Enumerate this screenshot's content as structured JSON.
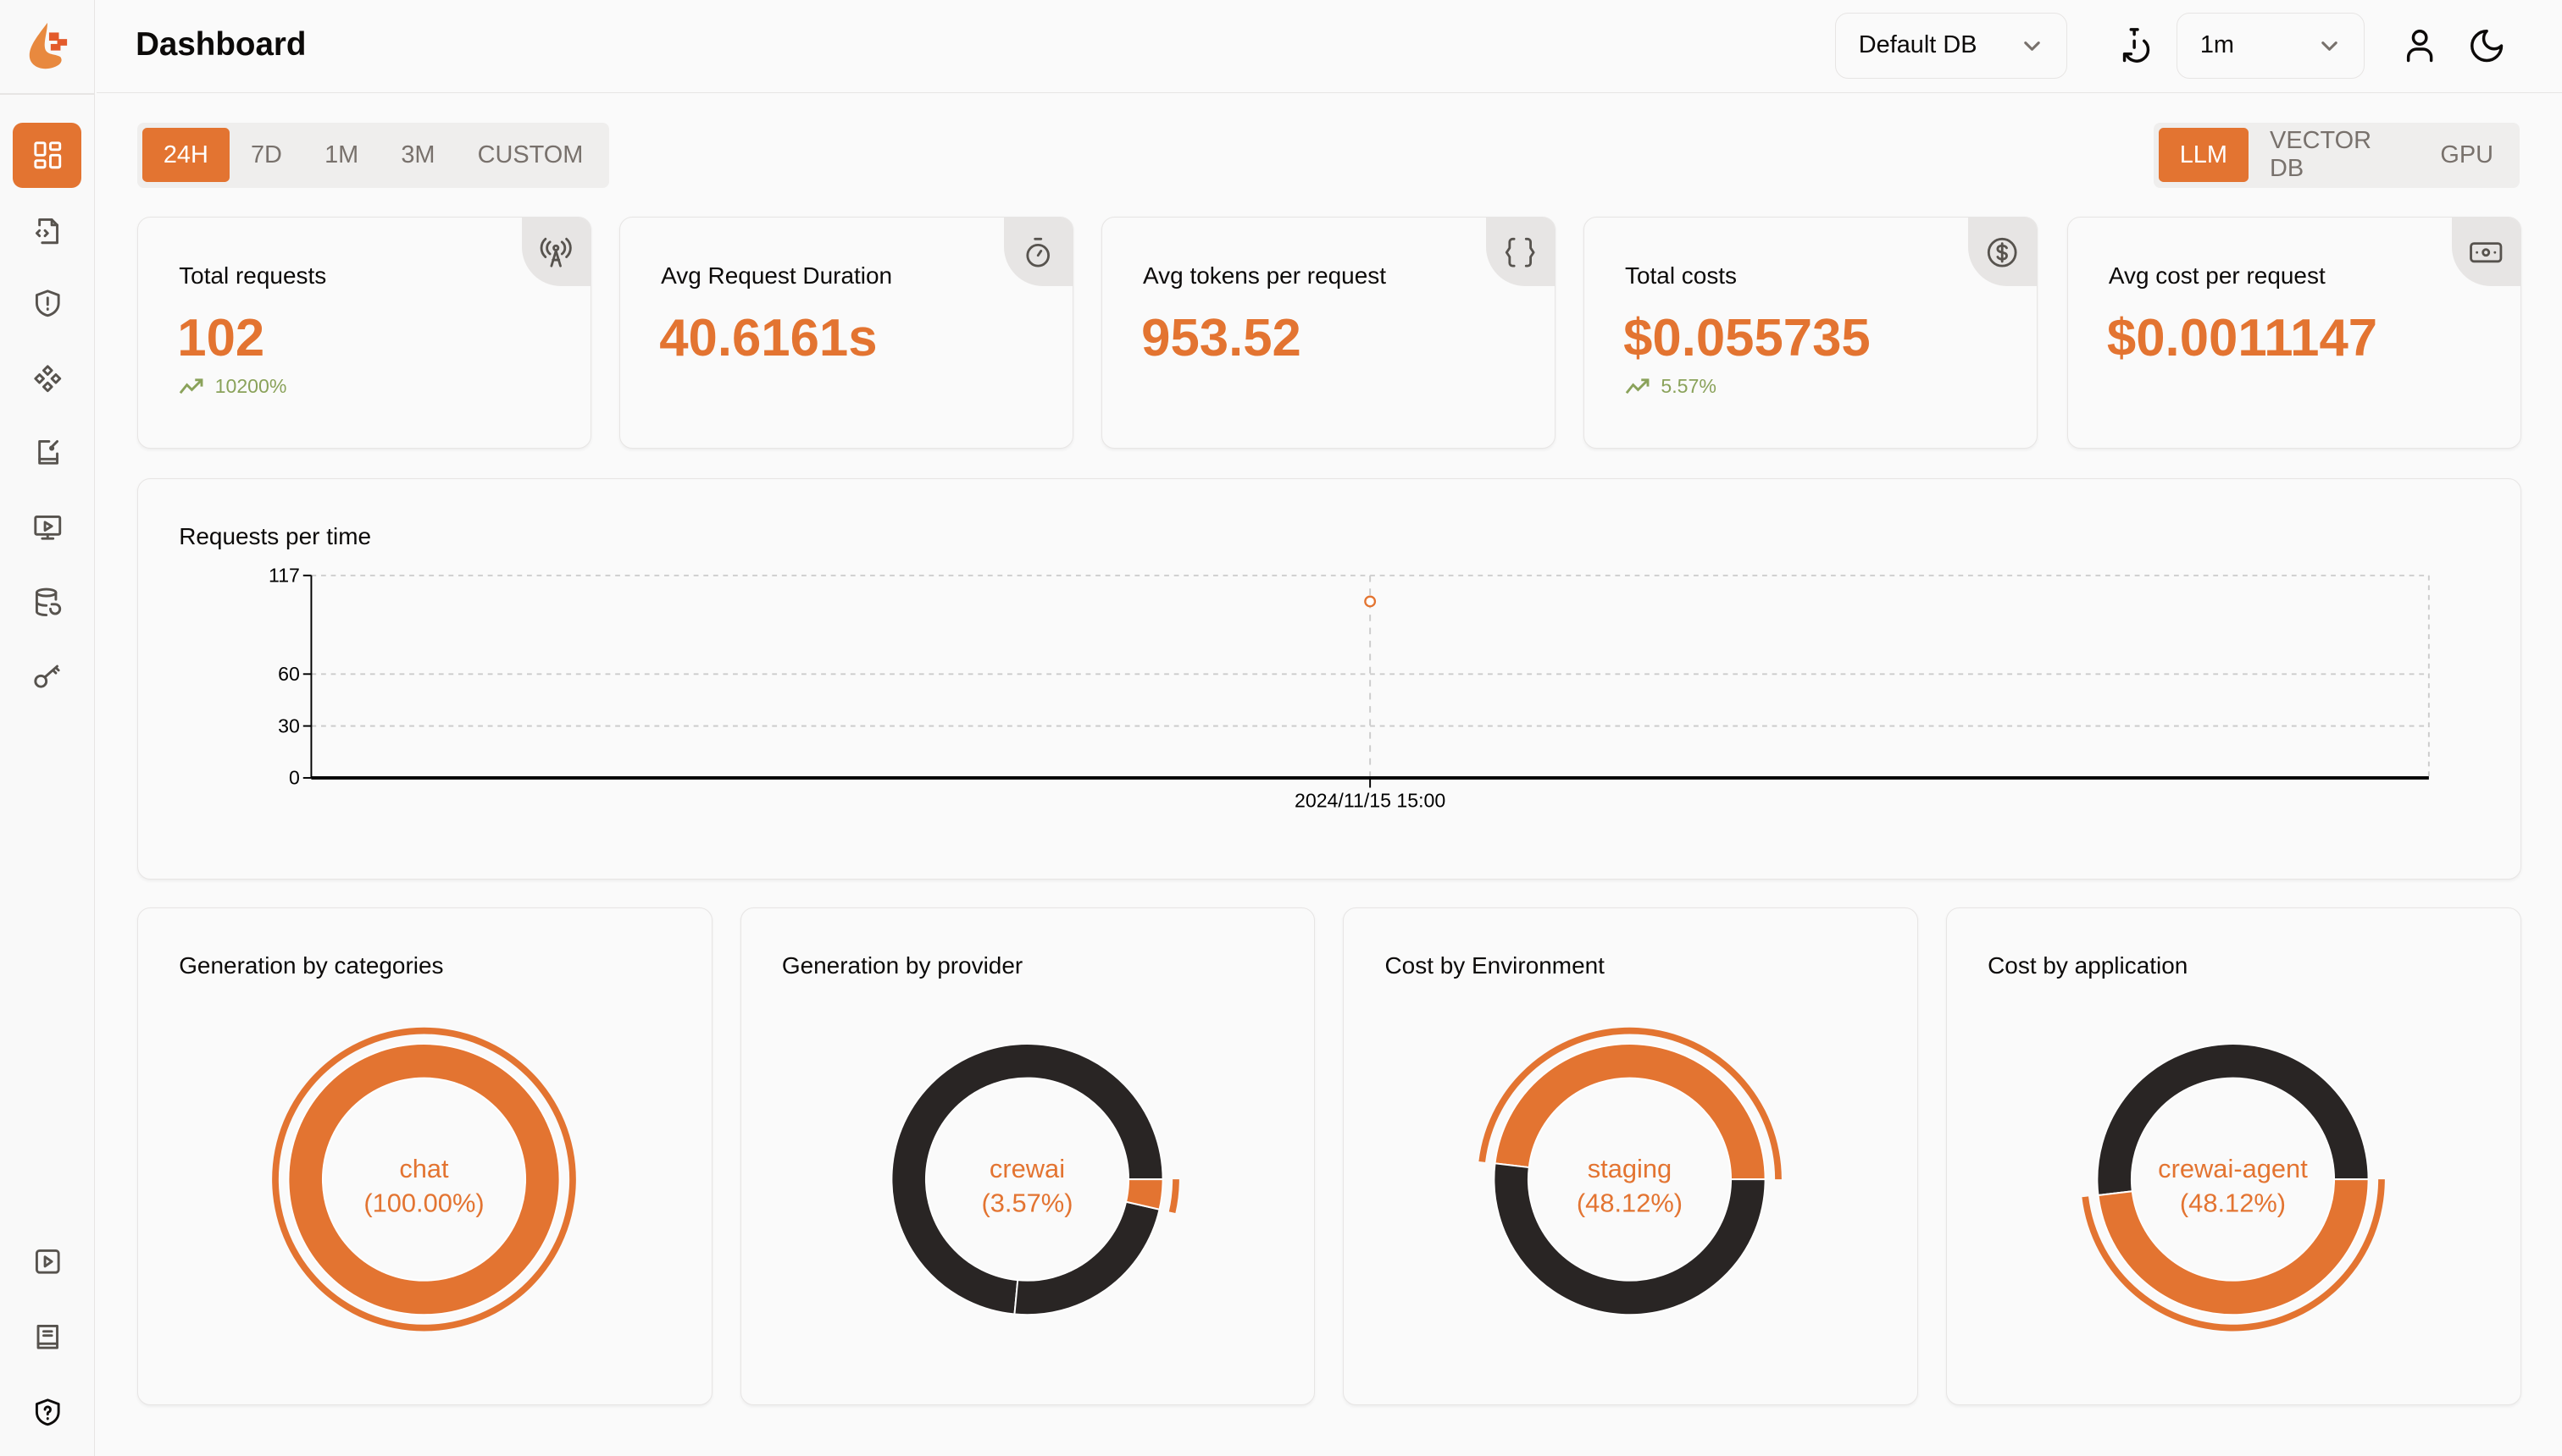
{
  "header": {
    "title": "Dashboard",
    "db_select": "Default DB",
    "refresh_select": "1m"
  },
  "time_filters": [
    {
      "label": "24H",
      "active": true
    },
    {
      "label": "7D"
    },
    {
      "label": "1M"
    },
    {
      "label": "3M"
    },
    {
      "label": "CUSTOM"
    }
  ],
  "view_tabs": [
    {
      "label": "LLM",
      "active": true
    },
    {
      "label": "VECTOR DB"
    },
    {
      "label": "GPU"
    }
  ],
  "stats": [
    {
      "label": "Total requests",
      "value": "102",
      "trend": "10200%",
      "icon": "broadcast-tower-icon"
    },
    {
      "label": "Avg Request Duration",
      "value": "40.6161s",
      "icon": "stopwatch-icon"
    },
    {
      "label": "Avg tokens per request",
      "value": "953.52",
      "icon": "braces-icon"
    },
    {
      "label": "Total costs",
      "value": "$0.055735",
      "trend": "5.57%",
      "icon": "dollar-circle-icon"
    },
    {
      "label": "Avg cost per request",
      "value": "$0.0011147",
      "icon": "banknote-icon"
    }
  ],
  "colors": {
    "accent": "#E37431",
    "dark": "#292524",
    "trend_up": "#8AA25A"
  },
  "chart_data": [
    {
      "type": "line",
      "title": "Requests per time",
      "x": [
        "2024/11/15 15:00"
      ],
      "series": [
        {
          "values": [
            102
          ]
        }
      ],
      "ylim": [
        0,
        117
      ],
      "yticks": [
        "0",
        "30",
        "60",
        "117"
      ],
      "grid": true,
      "color": "#E37431"
    },
    {
      "type": "pie",
      "title": "Generation by categories",
      "slices": [
        {
          "label": "chat",
          "percent": 100.0,
          "active": true
        }
      ],
      "center_label": "chat",
      "center_value": "(100.00%)"
    },
    {
      "type": "pie",
      "title": "Generation by provider",
      "slices": [
        {
          "percent": 73.5
        },
        {
          "percent": 22.93
        },
        {
          "label": "crewai",
          "percent": 3.57,
          "active": true
        }
      ],
      "center_label": "crewai",
      "center_value": "(3.57%)"
    },
    {
      "type": "pie",
      "title": "Cost by Environment",
      "slices": [
        {
          "label": "staging",
          "percent": 48.12,
          "active": true
        },
        {
          "percent": 51.88
        }
      ],
      "center_label": "staging",
      "center_value": "(48.12%)"
    },
    {
      "type": "pie",
      "title": "Cost by application",
      "slices": [
        {
          "percent": 51.88
        },
        {
          "label": "crewai-agent",
          "percent": 48.12,
          "active": true
        }
      ],
      "center_label": "crewai-agent",
      "center_value": "(48.12%)"
    }
  ]
}
